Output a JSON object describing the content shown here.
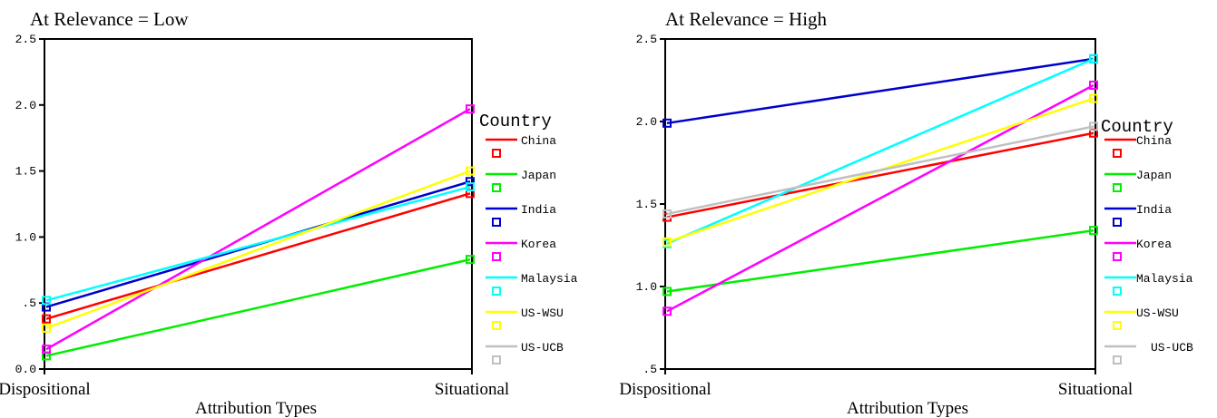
{
  "chart_data": [
    {
      "type": "line",
      "title": "At Relevance = Low",
      "xlabel": "Attribution Types",
      "ylabel": "",
      "categories": [
        "Dispositional",
        "Situational"
      ],
      "ylim": [
        0.0,
        2.5
      ],
      "yticks": [
        0.0,
        0.5,
        1.0,
        1.5,
        2.0,
        2.5
      ],
      "ytick_labels": [
        "0.0",
        ".5",
        "1.0",
        "1.5",
        "2.0",
        "2.5"
      ],
      "legend_title": "Country",
      "legend_placement": "right",
      "grid": false,
      "series": [
        {
          "name": "China",
          "color": "#ff0000",
          "values": [
            0.38,
            1.33
          ]
        },
        {
          "name": "Japan",
          "color": "#00ee00",
          "values": [
            0.1,
            0.83
          ]
        },
        {
          "name": "India",
          "color": "#0000cc",
          "values": [
            0.47,
            1.42
          ]
        },
        {
          "name": "Korea",
          "color": "#ff00ff",
          "values": [
            0.15,
            1.97
          ]
        },
        {
          "name": "Malaysia",
          "color": "#00ffff",
          "values": [
            0.52,
            1.38
          ]
        },
        {
          "name": "US-WSU",
          "color": "#ffff00",
          "values": [
            0.31,
            1.5
          ]
        }
      ],
      "legend_entries": [
        {
          "name": "China",
          "color": "#ff0000"
        },
        {
          "name": "Japan",
          "color": "#00ee00"
        },
        {
          "name": "India",
          "color": "#0000cc"
        },
        {
          "name": "Korea",
          "color": "#ff00ff"
        },
        {
          "name": "Malaysia",
          "color": "#00ffff"
        },
        {
          "name": "US-WSU",
          "color": "#ffff00"
        },
        {
          "name": "US-UCB",
          "color": "#c0c0c0"
        }
      ]
    },
    {
      "type": "line",
      "title": "At Relevance = High",
      "xlabel": "Attribution Types",
      "ylabel": "",
      "categories": [
        "Dispositional",
        "Situational"
      ],
      "ylim": [
        0.5,
        2.5
      ],
      "yticks": [
        0.5,
        1.0,
        1.5,
        2.0,
        2.5
      ],
      "ytick_labels": [
        ".5",
        "1.0",
        "1.5",
        "2.0",
        "2.5"
      ],
      "legend_title": "Country",
      "legend_placement": "right",
      "grid": false,
      "series": [
        {
          "name": "China",
          "color": "#ff0000",
          "values": [
            1.42,
            1.93
          ]
        },
        {
          "name": "Japan",
          "color": "#00ee00",
          "values": [
            0.97,
            1.34
          ]
        },
        {
          "name": "India",
          "color": "#0000cc",
          "values": [
            1.99,
            2.38
          ]
        },
        {
          "name": "Korea",
          "color": "#ff00ff",
          "values": [
            0.85,
            2.22
          ]
        },
        {
          "name": "Malaysia",
          "color": "#00ffff",
          "values": [
            1.26,
            2.38
          ]
        },
        {
          "name": "US-WSU",
          "color": "#ffff00",
          "values": [
            1.27,
            2.14
          ]
        },
        {
          "name": "US-UCB",
          "color": "#c0c0c0",
          "values": [
            1.44,
            1.97
          ]
        }
      ],
      "legend_entries": [
        {
          "name": "China",
          "color": "#ff0000"
        },
        {
          "name": "Japan",
          "color": "#00ee00"
        },
        {
          "name": "India",
          "color": "#0000cc"
        },
        {
          "name": "Korea",
          "color": "#ff00ff"
        },
        {
          "name": "Malaysia",
          "color": "#00ffff"
        },
        {
          "name": "US-WSU",
          "color": "#ffff00"
        },
        {
          "name": "US-UCB",
          "color": "#c0c0c0"
        }
      ]
    }
  ]
}
